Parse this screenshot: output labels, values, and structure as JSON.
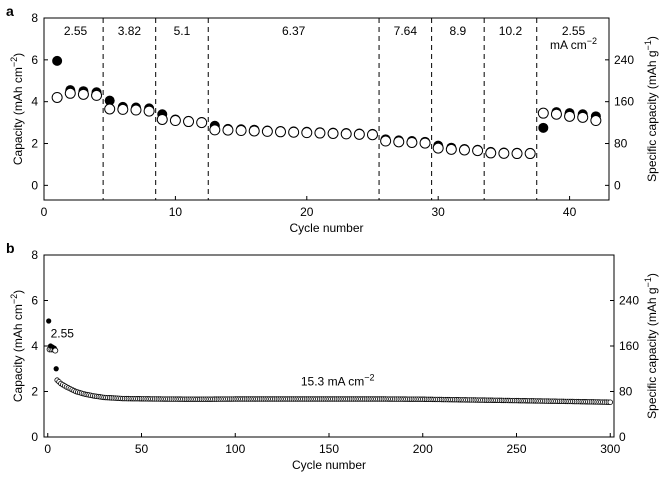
{
  "chart_data": [
    {
      "panel_label": "a",
      "type": "scatter",
      "xlabel": "Cycle number",
      "ylabel": "Capacity (mAh cm",
      "ylabel_sup": "−2",
      "ylabel_close": ")",
      "y2label": "Specific capacity (mAh g",
      "y2label_sup": "−1",
      "y2label_close": ")",
      "xlim": [
        0,
        43
      ],
      "ylim": [
        -0.7,
        8
      ],
      "y2lim": [
        -28,
        320
      ],
      "xticks": [
        "0",
        "10",
        "20",
        "30",
        "40"
      ],
      "yticks": [
        "0",
        "2",
        "4",
        "6",
        "8"
      ],
      "y2ticks": [
        "0",
        "80",
        "160",
        "240"
      ],
      "grid": false,
      "rate_boundaries": [
        4.5,
        8.5,
        12.5,
        25.5,
        29.5,
        33.5,
        37.5
      ],
      "rate_labels": [
        {
          "text": "2.55",
          "x": 2.4
        },
        {
          "text": "3.82",
          "x": 6.5
        },
        {
          "text": "5.1",
          "x": 10.5
        },
        {
          "text": "6.37",
          "x": 19.0
        },
        {
          "text": "7.64",
          "x": 27.5
        },
        {
          "text": "8.9",
          "x": 31.5
        },
        {
          "text": "10.2",
          "x": 35.5
        },
        {
          "text": "2.55",
          "x": 40.3
        }
      ],
      "rate_unit": "mA cm",
      "rate_unit_sup": "−2",
      "series": [
        {
          "marker": "filled",
          "x": [
            1,
            2,
            3,
            4,
            5,
            6,
            7,
            8,
            9,
            10,
            11,
            12,
            13,
            14,
            15,
            16,
            17,
            18,
            19,
            20,
            21,
            22,
            23,
            24,
            25,
            26,
            27,
            28,
            29,
            30,
            31,
            32,
            33,
            34,
            35,
            36,
            37,
            38,
            39,
            40,
            41,
            42
          ],
          "y": [
            5.95,
            4.55,
            4.5,
            4.45,
            4.05,
            3.75,
            3.72,
            3.68,
            3.4,
            3.15,
            3.08,
            3.03,
            2.85,
            2.7,
            2.68,
            2.66,
            2.62,
            2.6,
            2.58,
            2.56,
            2.54,
            2.52,
            2.5,
            2.48,
            2.46,
            2.2,
            2.15,
            2.12,
            2.08,
            1.9,
            1.8,
            1.74,
            1.7,
            1.6,
            1.57,
            1.56,
            1.55,
            2.75,
            3.5,
            3.45,
            3.4,
            3.3
          ]
        },
        {
          "marker": "open",
          "x": [
            1,
            2,
            3,
            4,
            5,
            6,
            7,
            8,
            9,
            10,
            11,
            12,
            13,
            14,
            15,
            16,
            17,
            18,
            19,
            20,
            21,
            22,
            23,
            24,
            25,
            26,
            27,
            28,
            29,
            30,
            31,
            32,
            33,
            34,
            35,
            36,
            37,
            38,
            39,
            40,
            41,
            42
          ],
          "y": [
            4.2,
            4.4,
            4.35,
            4.3,
            3.65,
            3.63,
            3.6,
            3.55,
            3.15,
            3.1,
            3.05,
            3.0,
            2.65,
            2.64,
            2.62,
            2.6,
            2.58,
            2.56,
            2.54,
            2.52,
            2.5,
            2.48,
            2.46,
            2.44,
            2.42,
            2.12,
            2.08,
            2.05,
            2.02,
            1.78,
            1.72,
            1.69,
            1.66,
            1.55,
            1.53,
            1.52,
            1.52,
            3.45,
            3.4,
            3.3,
            3.25,
            3.1
          ]
        }
      ]
    },
    {
      "panel_label": "b",
      "type": "scatter",
      "xlabel": "Cycle number",
      "ylabel": "Capacity (mAh cm",
      "ylabel_sup": "−2",
      "ylabel_close": ")",
      "y2label": "Specific capacity (mAh g",
      "y2label_sup": "−1",
      "y2label_close": ")",
      "xlim": [
        -2,
        302
      ],
      "ylim": [
        0,
        8
      ],
      "y2lim": [
        0,
        320
      ],
      "xticks": [
        "0",
        "50",
        "100",
        "150",
        "200",
        "250",
        "300"
      ],
      "yticks": [
        "0",
        "2",
        "4",
        "6",
        "8"
      ],
      "y2ticks": [
        "0",
        "80",
        "160",
        "240"
      ],
      "grid": false,
      "annotations": [
        {
          "text": "2.55",
          "x": 1.5,
          "y": 4.55,
          "sup": ""
        },
        {
          "text": "15.3 mA cm",
          "x": 135,
          "y": 2.45,
          "sup": "−2"
        }
      ],
      "early_points": [
        {
          "x": 0.5,
          "y": 5.1,
          "marker": "filled"
        },
        {
          "x": 1,
          "y": 3.85,
          "marker": "open"
        },
        {
          "x": 1.5,
          "y": 4.0,
          "marker": "filled"
        },
        {
          "x": 2,
          "y": 3.85,
          "marker": "open"
        },
        {
          "x": 2.5,
          "y": 3.95,
          "marker": "filled"
        },
        {
          "x": 3,
          "y": 3.85,
          "marker": "open"
        },
        {
          "x": 3.5,
          "y": 3.9,
          "marker": "filled"
        },
        {
          "x": 4,
          "y": 3.8,
          "marker": "open"
        },
        {
          "x": 4.5,
          "y": 3.0,
          "marker": "filled"
        }
      ],
      "long_series": {
        "marker": "open",
        "x_start": 5,
        "x_end": 300,
        "x_step": 1,
        "knots_x": [
          5,
          7,
          10,
          15,
          20,
          25,
          30,
          40,
          60,
          80,
          100,
          150,
          180,
          200,
          250,
          280,
          300
        ],
        "knots_y": [
          2.5,
          2.35,
          2.2,
          2.0,
          1.88,
          1.8,
          1.74,
          1.69,
          1.67,
          1.66,
          1.67,
          1.67,
          1.67,
          1.66,
          1.6,
          1.56,
          1.53
        ]
      }
    }
  ]
}
